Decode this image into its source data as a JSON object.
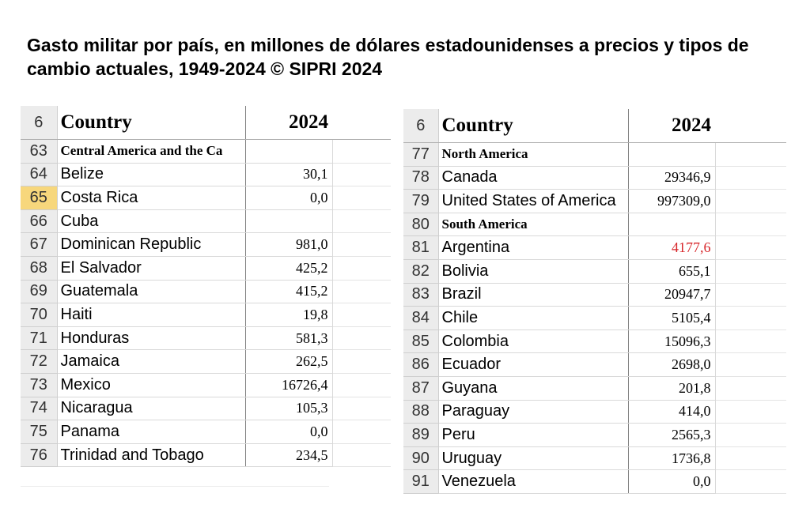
{
  "title": "Gasto militar por país, en millones de dólares estadounidenses a precios y tipos de cambio actuales, 1949-2024 © SIPRI 2024",
  "left_table": {
    "header": {
      "row": "6",
      "country": "Country",
      "year": "2024"
    },
    "rows": [
      {
        "row": "63",
        "name": "Central America and the Ca",
        "value": "",
        "region": true
      },
      {
        "row": "64",
        "name": "Belize",
        "value": "30,1"
      },
      {
        "row": "65",
        "name": "Costa Rica",
        "value": "0,0",
        "selected": true
      },
      {
        "row": "66",
        "name": "Cuba",
        "value": ""
      },
      {
        "row": "67",
        "name": "Dominican Republic",
        "value": "981,0"
      },
      {
        "row": "68",
        "name": "El Salvador",
        "value": "425,2"
      },
      {
        "row": "69",
        "name": "Guatemala",
        "value": "415,2"
      },
      {
        "row": "70",
        "name": "Haiti",
        "value": "19,8"
      },
      {
        "row": "71",
        "name": "Honduras",
        "value": "581,3"
      },
      {
        "row": "72",
        "name": "Jamaica",
        "value": "262,5"
      },
      {
        "row": "73",
        "name": "Mexico",
        "value": "16726,4"
      },
      {
        "row": "74",
        "name": "Nicaragua",
        "value": "105,3"
      },
      {
        "row": "75",
        "name": "Panama",
        "value": "0,0"
      },
      {
        "row": "76",
        "name": "Trinidad and Tobago",
        "value": "234,5"
      }
    ]
  },
  "right_table": {
    "header": {
      "row": "6",
      "country": "Country",
      "year": "2024"
    },
    "rows": [
      {
        "row": "77",
        "name": "North America",
        "value": "",
        "region": true
      },
      {
        "row": "78",
        "name": "Canada",
        "value": "29346,9"
      },
      {
        "row": "79",
        "name": "United States of America",
        "value": "997309,0"
      },
      {
        "row": "80",
        "name": "South America",
        "value": "",
        "region": true
      },
      {
        "row": "81",
        "name": "Argentina",
        "value": "4177,6",
        "highlight": true
      },
      {
        "row": "82",
        "name": "Bolivia",
        "value": "655,1"
      },
      {
        "row": "83",
        "name": "Brazil",
        "value": "20947,7"
      },
      {
        "row": "84",
        "name": "Chile",
        "value": "5105,4"
      },
      {
        "row": "85",
        "name": "Colombia",
        "value": "15096,3"
      },
      {
        "row": "86",
        "name": "Ecuador",
        "value": "2698,0"
      },
      {
        "row": "87",
        "name": "Guyana",
        "value": "201,8"
      },
      {
        "row": "88",
        "name": "Paraguay",
        "value": "414,0"
      },
      {
        "row": "89",
        "name": "Peru",
        "value": "2565,3"
      },
      {
        "row": "90",
        "name": "Uruguay",
        "value": "1736,8"
      },
      {
        "row": "91",
        "name": "Venezuela",
        "value": "0,0"
      }
    ]
  },
  "colors": {
    "selected_row_header": "#f7d77c",
    "highlight_value": "#d7262a",
    "row_header_bg": "#ececec"
  }
}
